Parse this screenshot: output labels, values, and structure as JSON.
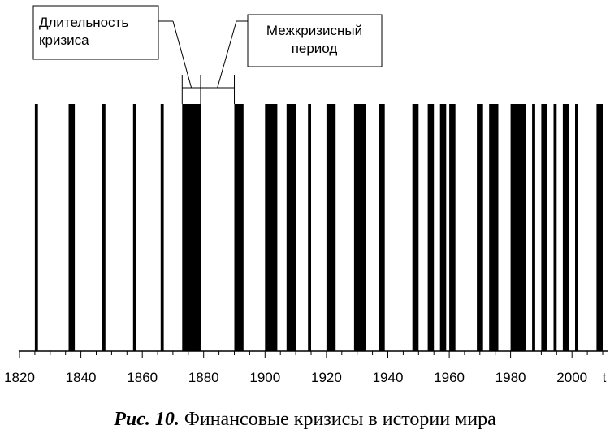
{
  "chart_data": {
    "type": "bar",
    "description_type": "event-intervals",
    "x_axis": {
      "range": [
        1820,
        2010
      ],
      "ticks": [
        1820,
        1840,
        1860,
        1880,
        1900,
        1920,
        1940,
        1960,
        1980,
        2000
      ],
      "minor_tick_step": 5,
      "label": "t"
    },
    "crises": [
      [
        1825,
        1826
      ],
      [
        1836,
        1838
      ],
      [
        1847,
        1848
      ],
      [
        1857,
        1858
      ],
      [
        1866,
        1867
      ],
      [
        1873,
        1879
      ],
      [
        1890,
        1893
      ],
      [
        1900,
        1904
      ],
      [
        1907,
        1910
      ],
      [
        1914,
        1915
      ],
      [
        1920,
        1923
      ],
      [
        1929,
        1933
      ],
      [
        1937,
        1939
      ],
      [
        1948,
        1950
      ],
      [
        1953,
        1955
      ],
      [
        1957,
        1959
      ],
      [
        1960,
        1962
      ],
      [
        1969,
        1971
      ],
      [
        1973,
        1976
      ],
      [
        1980,
        1985
      ],
      [
        1987,
        1988
      ],
      [
        1990,
        1992
      ],
      [
        1994,
        1995
      ],
      [
        1997,
        1999
      ],
      [
        2001,
        2002
      ],
      [
        2008,
        2010
      ]
    ],
    "annotations": {
      "duration": {
        "label": "Длительность кризиса",
        "span": [
          1873,
          1879
        ]
      },
      "intercrisis": {
        "label": "Межкризисный период",
        "span": [
          1879,
          1890
        ]
      }
    },
    "grid": false
  },
  "caption": {
    "figure": "Рис. 10.",
    "text": " Финансовые кризисы в истории мира"
  }
}
